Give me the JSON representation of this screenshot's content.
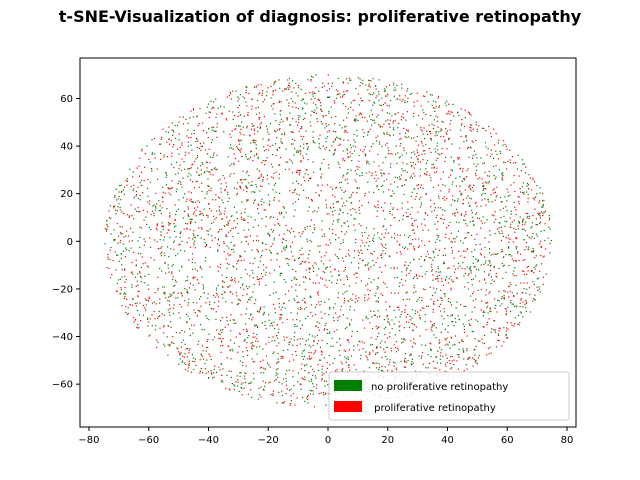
{
  "chart_data": {
    "type": "scatter",
    "title": "t-SNE-Visualization of diagnosis: proliferative retinopathy",
    "xlabel": "",
    "ylabel": "",
    "xlim": [
      -83,
      83
    ],
    "ylim": [
      -78,
      77
    ],
    "xticks": [
      -80,
      -60,
      -40,
      -20,
      0,
      20,
      40,
      60,
      80
    ],
    "yticks": [
      -60,
      -40,
      -20,
      0,
      20,
      40,
      60
    ],
    "grid": false,
    "legend_position": "lower right",
    "point_cloud": {
      "shape": "ellipse",
      "center": [
        0,
        0
      ],
      "x_extent": [
        -75,
        75
      ],
      "y_extent": [
        -70,
        70
      ],
      "approx_points_per_series": 2400
    },
    "series": [
      {
        "name": "no proliferative retinopathy",
        "color": "#008000"
      },
      {
        "name": " proliferative retinopathy",
        "color": "#ff0000"
      }
    ]
  }
}
